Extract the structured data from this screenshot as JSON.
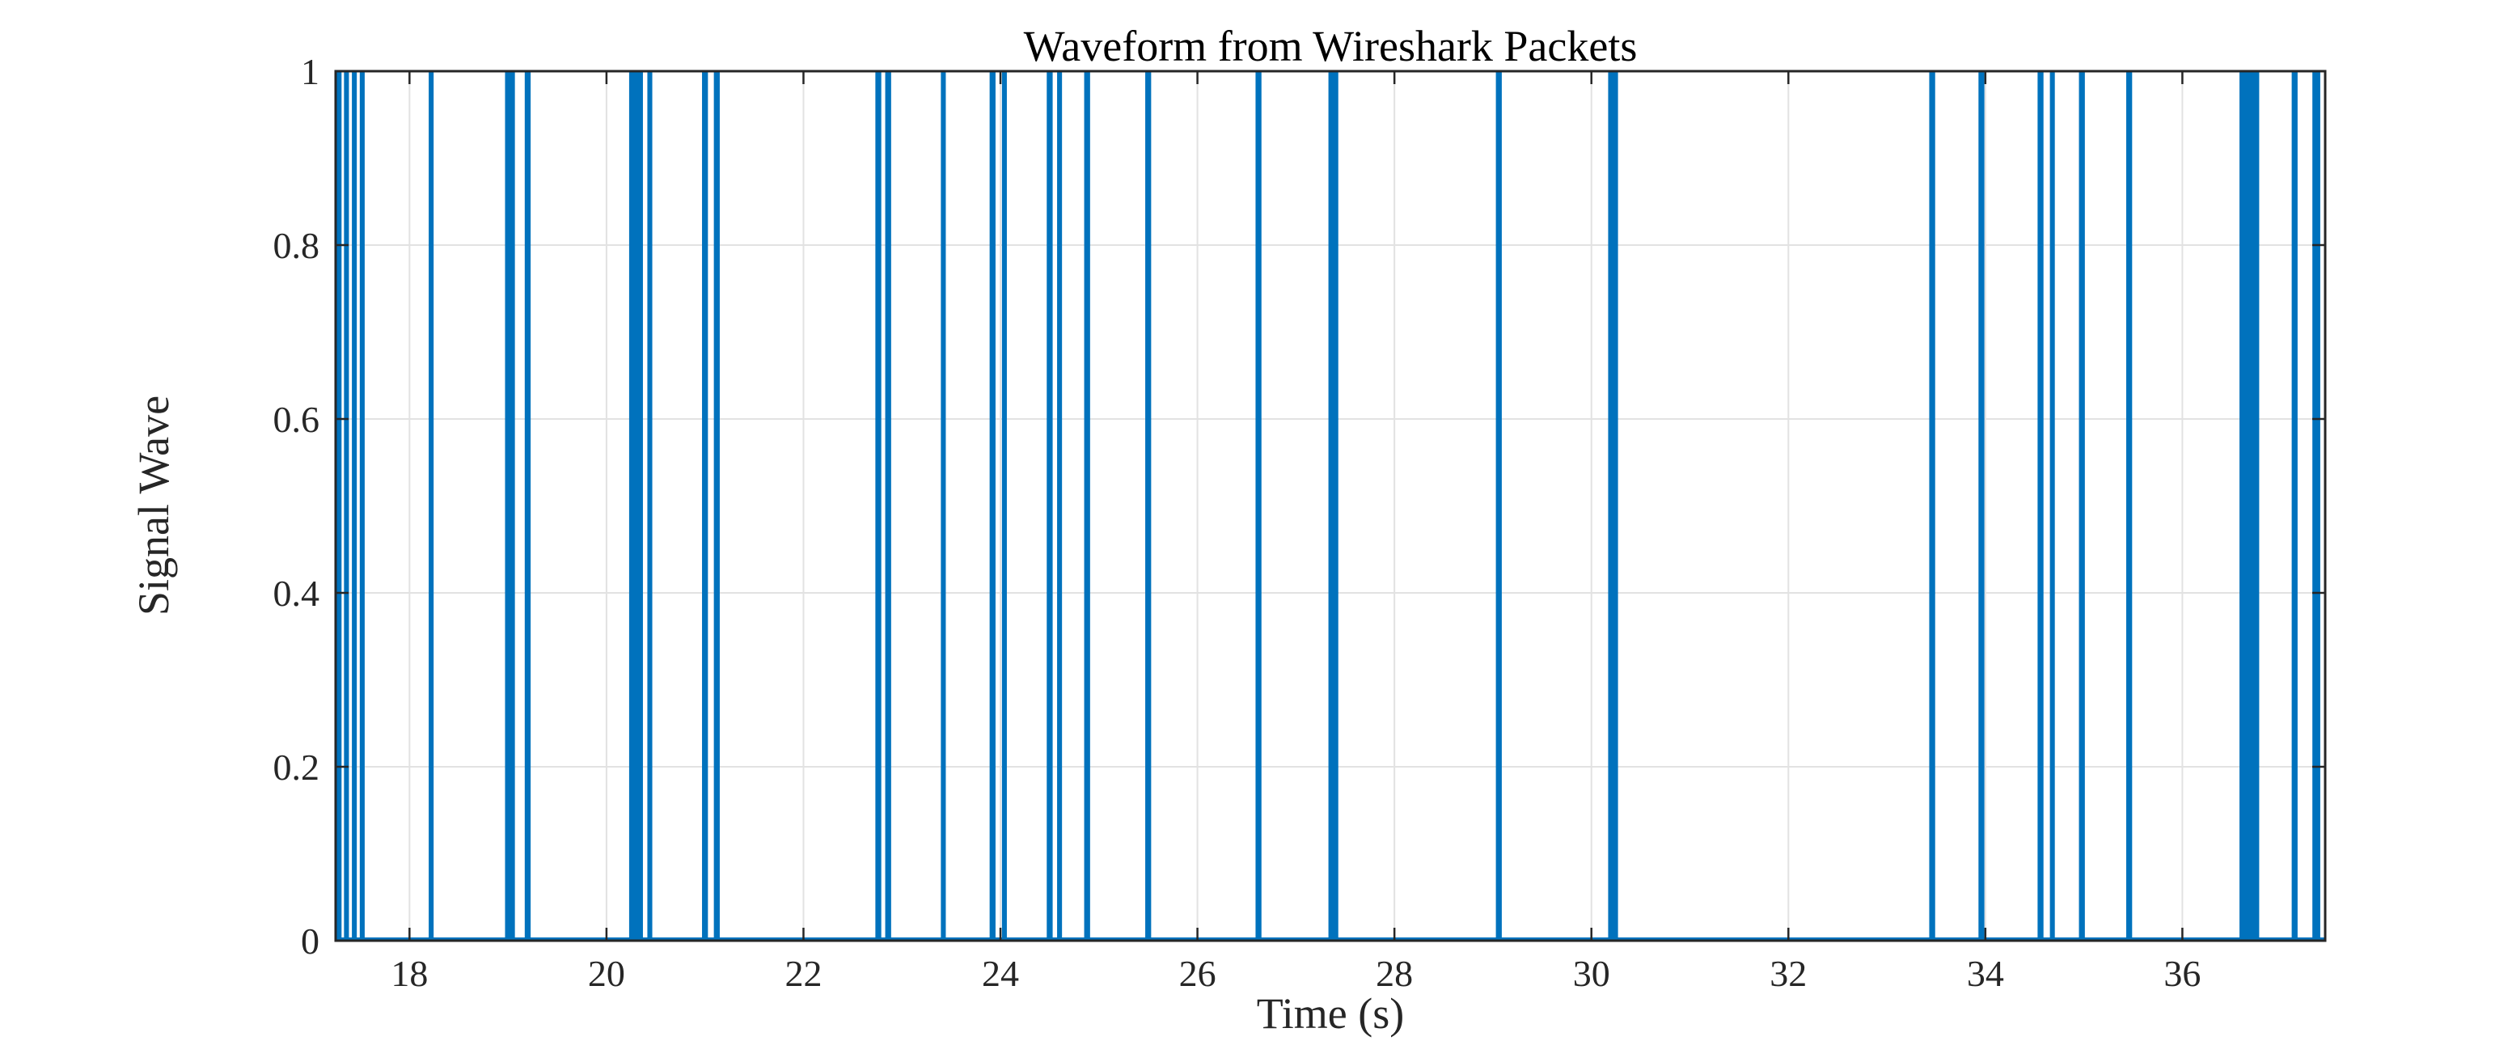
{
  "chart_data": {
    "type": "line",
    "subtype": "pulse-train",
    "title": "Waveform from Wireshark Packets",
    "xlabel": "Time (s)",
    "ylabel": "Signal Wave",
    "xlim": [
      17.25,
      37.45
    ],
    "ylim": [
      0,
      1
    ],
    "xticks": [
      18,
      20,
      22,
      24,
      26,
      28,
      30,
      32,
      34,
      36
    ],
    "xtick_labels": [
      "18",
      "20",
      "22",
      "24",
      "26",
      "28",
      "30",
      "32",
      "34",
      "36"
    ],
    "yticks": [
      0,
      0.2,
      0.4,
      0.6,
      0.8,
      1
    ],
    "ytick_labels": [
      "0",
      "0.2",
      "0.4",
      "0.6",
      "0.8",
      "1"
    ],
    "grid": true,
    "legend": "none",
    "baseline_value": 0,
    "pulse_high": 1,
    "line_color": "#0072BD",
    "grid_color": "#E2E2E2",
    "axis_color": "#262626",
    "title_color": "#000000",
    "background_color": "#FFFFFF",
    "pulses": [
      {
        "t": 17.28,
        "w": 0.06
      },
      {
        "t": 17.36,
        "w": 0.05
      },
      {
        "t": 17.44,
        "w": 0.05
      },
      {
        "t": 17.52,
        "w": 0.05
      },
      {
        "t": 18.22,
        "w": 0.05
      },
      {
        "t": 19.02,
        "w": 0.1
      },
      {
        "t": 19.2,
        "w": 0.06
      },
      {
        "t": 20.3,
        "w": 0.14
      },
      {
        "t": 20.44,
        "w": 0.05
      },
      {
        "t": 21.0,
        "w": 0.06
      },
      {
        "t": 21.12,
        "w": 0.06
      },
      {
        "t": 22.76,
        "w": 0.06
      },
      {
        "t": 22.86,
        "w": 0.06
      },
      {
        "t": 23.42,
        "w": 0.05
      },
      {
        "t": 23.92,
        "w": 0.06
      },
      {
        "t": 24.04,
        "w": 0.05
      },
      {
        "t": 24.5,
        "w": 0.06
      },
      {
        "t": 24.6,
        "w": 0.05
      },
      {
        "t": 24.88,
        "w": 0.06
      },
      {
        "t": 25.5,
        "w": 0.06
      },
      {
        "t": 26.62,
        "w": 0.06
      },
      {
        "t": 27.38,
        "w": 0.1
      },
      {
        "t": 29.06,
        "w": 0.06
      },
      {
        "t": 30.22,
        "w": 0.1
      },
      {
        "t": 33.46,
        "w": 0.06
      },
      {
        "t": 33.96,
        "w": 0.06
      },
      {
        "t": 34.56,
        "w": 0.06
      },
      {
        "t": 34.68,
        "w": 0.05
      },
      {
        "t": 34.98,
        "w": 0.06
      },
      {
        "t": 35.46,
        "w": 0.06
      },
      {
        "t": 36.68,
        "w": 0.2
      },
      {
        "t": 37.14,
        "w": 0.06
      },
      {
        "t": 37.36,
        "w": 0.08
      }
    ]
  }
}
